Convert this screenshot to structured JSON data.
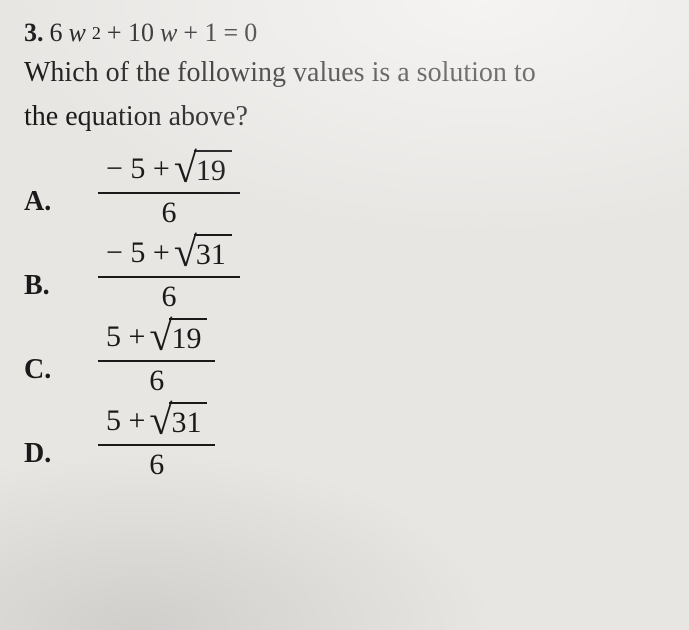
{
  "question": {
    "number": "3.",
    "equation_parts": {
      "lhs_a": "6",
      "var1": "w",
      "exp": "2",
      "plus1": "+ 10",
      "var2": "w",
      "plus2": "+ 1",
      "eq": "=",
      "rhs": "0"
    },
    "prompt_line1": "Which of the following values is a solution to",
    "prompt_line2": "the equation above?"
  },
  "options": {
    "A": {
      "label": "A.",
      "numerator_prefix": "− 5 +",
      "radicand": "19",
      "denominator": "6"
    },
    "B": {
      "label": "B.",
      "numerator_prefix": "− 5 +",
      "radicand": "31",
      "denominator": "6"
    },
    "C": {
      "label": "C.",
      "numerator_prefix": "5 +",
      "radicand": "19",
      "denominator": "6"
    },
    "D": {
      "label": "D.",
      "numerator_prefix": "5 +",
      "radicand": "31",
      "denominator": "6"
    }
  },
  "style": {
    "background_color": "#e8e6e3",
    "text_color": "#1a1a1a",
    "rule_color": "#1a1a1a",
    "base_fontsize_pt": 22,
    "bold_weight": 700,
    "font_family": "Georgia, Times New Roman, serif"
  }
}
